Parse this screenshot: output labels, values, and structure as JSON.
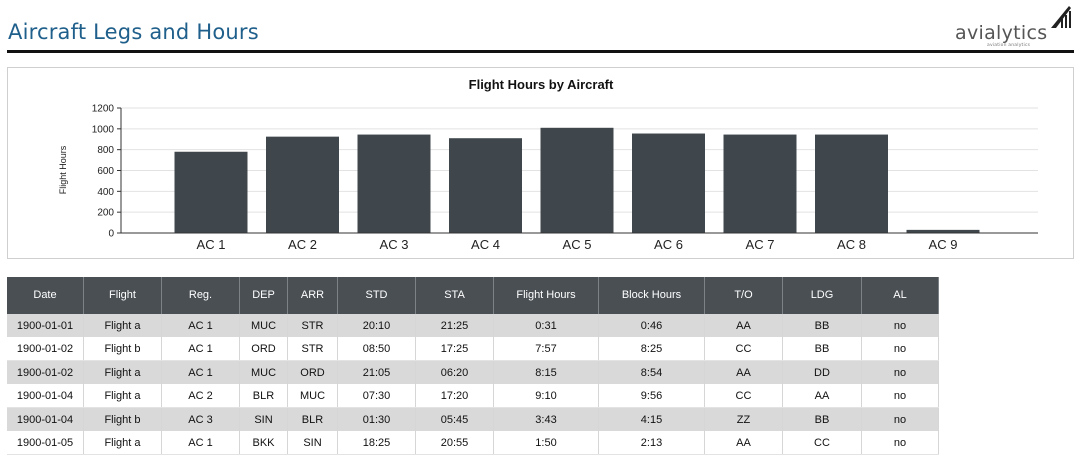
{
  "page": {
    "title": "Aircraft Legs and Hours",
    "logo_text": "avialytics",
    "logo_tagline": "aviation analytics"
  },
  "chart_data": {
    "type": "bar",
    "title": "Flight Hours by Aircraft",
    "xlabel": "",
    "ylabel": "Flight Hours",
    "categories": [
      "AC 1",
      "AC 2",
      "AC 3",
      "AC 4",
      "AC 5",
      "AC 6",
      "AC 7",
      "AC 8",
      "AC 9"
    ],
    "values": [
      780,
      925,
      945,
      910,
      1010,
      955,
      945,
      945,
      30
    ],
    "ylim": [
      0,
      1200
    ],
    "yticks": [
      0,
      200,
      400,
      600,
      800,
      1000,
      1200
    ],
    "grid": true,
    "bar_color": "#3f474c"
  },
  "table": {
    "columns": [
      "Date",
      "Flight",
      "Reg.",
      "DEP",
      "ARR",
      "STD",
      "STA",
      "Flight Hours",
      "Block Hours",
      "T/O",
      "LDG",
      "AL"
    ],
    "header_color": "#4a4f54",
    "rows": [
      [
        "1900-01-01",
        "Flight a",
        "AC 1",
        "MUC",
        "STR",
        "20:10",
        "21:25",
        "0:31",
        "0:46",
        "AA",
        "BB",
        "no"
      ],
      [
        "1900-01-02",
        "Flight b",
        "AC 1",
        "ORD",
        "STR",
        "08:50",
        "17:25",
        "7:57",
        "8:25",
        "CC",
        "BB",
        "no"
      ],
      [
        "1900-01-02",
        "Flight a",
        "AC 1",
        "MUC",
        "ORD",
        "21:05",
        "06:20",
        "8:15",
        "8:54",
        "AA",
        "DD",
        "no"
      ],
      [
        "1900-01-04",
        "Flight a",
        "AC 2",
        "BLR",
        "MUC",
        "07:30",
        "17:20",
        "9:10",
        "9:56",
        "CC",
        "AA",
        "no"
      ],
      [
        "1900-01-04",
        "Flight b",
        "AC 3",
        "SIN",
        "BLR",
        "01:30",
        "05:45",
        "3:43",
        "4:15",
        "ZZ",
        "BB",
        "no"
      ],
      [
        "1900-01-05",
        "Flight a",
        "AC 1",
        "BKK",
        "SIN",
        "18:25",
        "20:55",
        "1:50",
        "2:13",
        "AA",
        "CC",
        "no"
      ]
    ]
  }
}
